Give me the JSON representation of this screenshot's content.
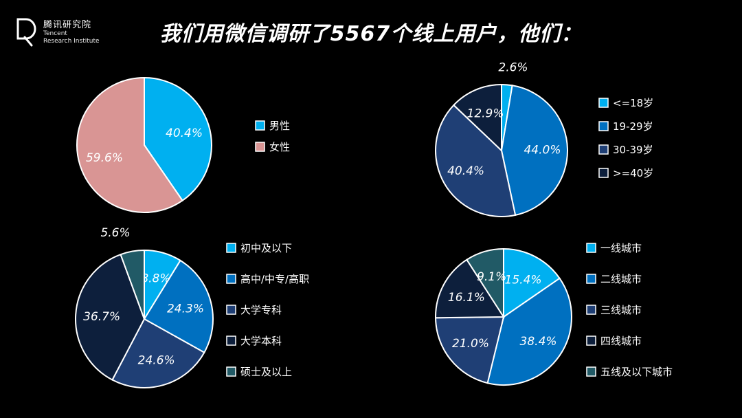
{
  "header": {
    "title": "我们用微信调研了5567个线上用户，他们：",
    "brand_cn": "腾讯研究院",
    "brand_en_line1": "Tencent",
    "brand_en_line2": "Research Institute"
  },
  "chart_data": [
    {
      "type": "pie",
      "id": "gender",
      "labels": [
        "男性",
        "女性"
      ],
      "values": [
        40.4,
        59.6
      ],
      "colors": [
        "#00b0f0",
        "#d99594"
      ]
    },
    {
      "type": "pie",
      "id": "age",
      "labels": [
        "<=18岁",
        "19-29岁",
        "30-39岁",
        ">=40岁"
      ],
      "values": [
        2.6,
        44.0,
        40.4,
        12.9
      ],
      "colors": [
        "#00b0f0",
        "#0070c0",
        "#1f3f75",
        "#0d1f3c"
      ]
    },
    {
      "type": "pie",
      "id": "education",
      "labels": [
        "初中及以下",
        "高中/中专/高职",
        "大学专科",
        "大学本科",
        "硕士及以上"
      ],
      "values": [
        8.8,
        24.3,
        24.6,
        36.7,
        5.6
      ],
      "colors": [
        "#00b0f0",
        "#0070c0",
        "#1f3f75",
        "#0d1f3c",
        "#215a66"
      ]
    },
    {
      "type": "pie",
      "id": "city",
      "labels": [
        "一线城市",
        "二线城市",
        "三线城市",
        "四线城市",
        "五线及以下城市"
      ],
      "values": [
        15.4,
        38.4,
        21.0,
        16.1,
        9.1
      ],
      "colors": [
        "#00b0f0",
        "#0070c0",
        "#1f3f75",
        "#0d1f3c",
        "#215a66"
      ]
    }
  ]
}
